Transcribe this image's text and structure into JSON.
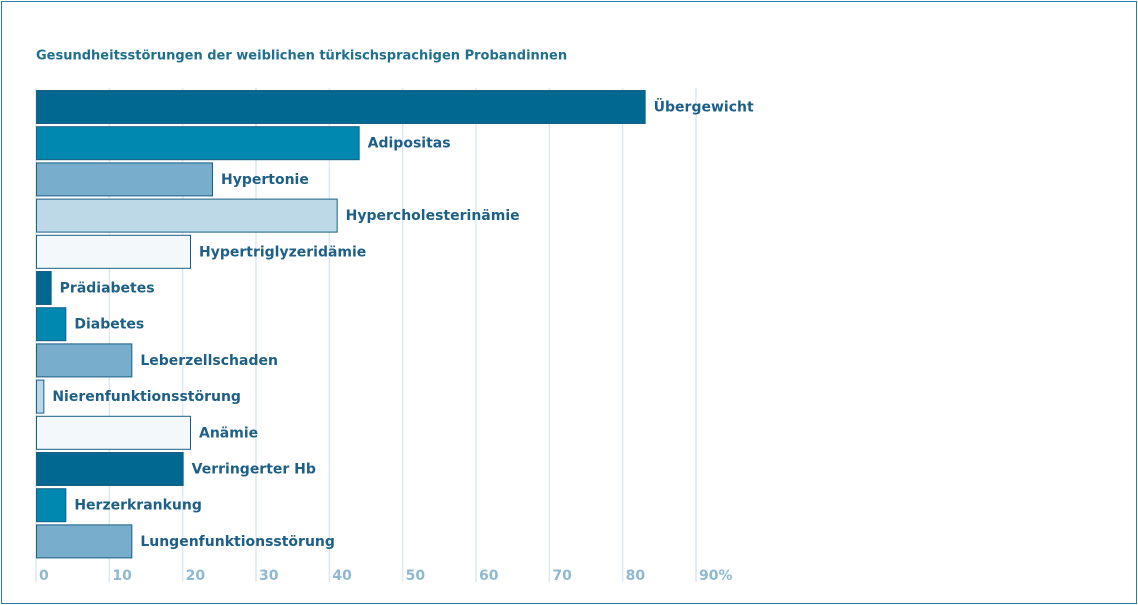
{
  "chart_data": {
    "type": "barh",
    "title": "Gesundheitsstörungen der weiblichen türkischsprachigen Probandinnen",
    "categories": [
      "Übergewicht",
      "Adipositas",
      "Hypertonie",
      "Hypercholesterinämie",
      "Hypertriglyzeridämie",
      "Prädiabetes",
      "Diabetes",
      "Leberzellschaden",
      "Nierenfunktionsstörung",
      "Anämie",
      "Verringerter Hb",
      "Herzerkrankung",
      "Lungenfunktionsstörung"
    ],
    "values": [
      83,
      44,
      24,
      41,
      21,
      2,
      4,
      13,
      1,
      21,
      20,
      4,
      13
    ],
    "colors": [
      "#006891",
      "#0088b0",
      "#78aecb",
      "#bdd8e6",
      "#f3f8fa",
      "#006891",
      "#0088b0",
      "#78aecb",
      "#bdd8e6",
      "#f3f8fa",
      "#006891",
      "#0088b0",
      "#78aecb"
    ],
    "xlim": [
      0,
      90
    ],
    "xticks": [
      0,
      10,
      20,
      30,
      40,
      50,
      60,
      70,
      80,
      {
        "value": 90,
        "label": "90%"
      }
    ],
    "grid": true
  }
}
